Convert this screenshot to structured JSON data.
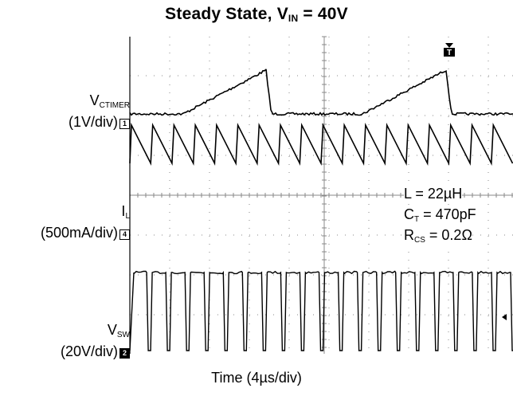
{
  "chart_data": {
    "type": "line",
    "title": "Steady State, V",
    "title_sub": "IN",
    "title_suffix": " = 40V",
    "xlabel": "Time (4µs/div)",
    "grid": true,
    "channels": [
      {
        "name": "V",
        "name_sub": "CTIMER",
        "scale": "(1V/div)",
        "marker": "1",
        "marker_style": "outline"
      },
      {
        "name": "I",
        "name_sub": "L",
        "scale": "(500mA/div)",
        "marker": "4",
        "marker_style": "outline"
      },
      {
        "name": "V",
        "name_sub": "SW",
        "scale": "(20V/div)",
        "marker": "2",
        "marker_style": "filled"
      }
    ],
    "annotations": [
      {
        "prefix": "L = 22µH",
        "sub": "",
        "suffix": ""
      },
      {
        "prefix": "C",
        "sub": "T",
        "suffix": " = 470pF"
      },
      {
        "prefix": "R",
        "sub": "CS",
        "suffix": " = 0.2Ω"
      }
    ],
    "trigger_marker": "T",
    "ctimer_cycles": 2,
    "inductor_ripple_cycles": 18,
    "switch_pulses": 20
  }
}
